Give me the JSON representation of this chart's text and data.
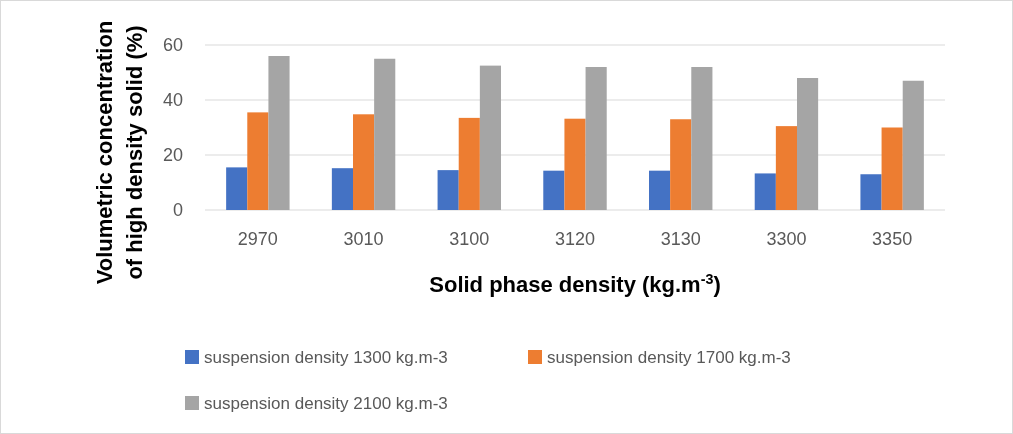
{
  "chart_data": {
    "type": "bar",
    "xlabel": "Solid phase density (kg.m$^{-3}$)",
    "ylabel": "Volumetric concentration\nof high density solid (%)",
    "categories": [
      "2970",
      "3010",
      "3100",
      "3120",
      "3130",
      "3300",
      "3350"
    ],
    "series": [
      {
        "name": "suspension density 1300 kg.m-3",
        "color": "#4472c4",
        "values": [
          15.5,
          15.2,
          14.5,
          14.3,
          14.3,
          13.3,
          13
        ]
      },
      {
        "name": "suspension density 1700 kg.m-3",
        "color": "#ed7d31",
        "values": [
          35.5,
          34.8,
          33.5,
          33.2,
          33,
          30.5,
          30
        ]
      },
      {
        "name": "suspension density 2100 kg.m-3",
        "color": "#a5a5a5",
        "values": [
          56,
          55,
          52.5,
          52,
          52,
          48,
          47
        ]
      }
    ],
    "ylim": [
      0,
      60
    ],
    "yticks": [
      0,
      20,
      40,
      60
    ],
    "grid": "y",
    "legend": "bottom"
  }
}
